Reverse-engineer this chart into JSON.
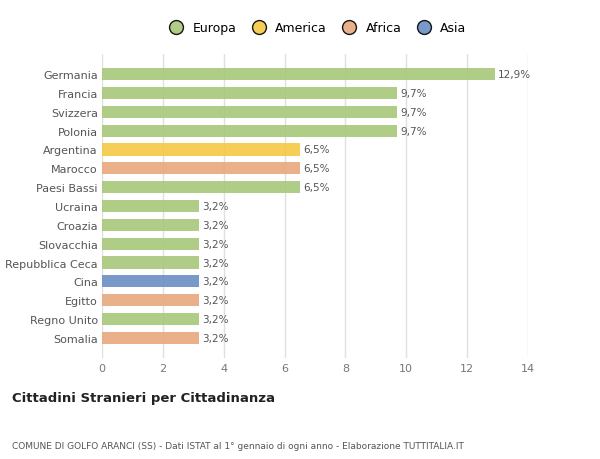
{
  "countries": [
    "Germania",
    "Francia",
    "Svizzera",
    "Polonia",
    "Argentina",
    "Marocco",
    "Paesi Bassi",
    "Ucraina",
    "Croazia",
    "Slovacchia",
    "Repubblica Ceca",
    "Cina",
    "Egitto",
    "Regno Unito",
    "Somalia"
  ],
  "values": [
    12.9,
    9.7,
    9.7,
    9.7,
    6.5,
    6.5,
    6.5,
    3.2,
    3.2,
    3.2,
    3.2,
    3.2,
    3.2,
    3.2,
    3.2
  ],
  "labels": [
    "12,9%",
    "9,7%",
    "9,7%",
    "9,7%",
    "6,5%",
    "6,5%",
    "6,5%",
    "3,2%",
    "3,2%",
    "3,2%",
    "3,2%",
    "3,2%",
    "3,2%",
    "3,2%",
    "3,2%"
  ],
  "colors": [
    "#a8c87a",
    "#a8c87a",
    "#a8c87a",
    "#a8c87a",
    "#f5c842",
    "#e8a87c",
    "#a8c87a",
    "#a8c87a",
    "#a8c87a",
    "#a8c87a",
    "#a8c87a",
    "#6b8fc2",
    "#e8a87c",
    "#a8c87a",
    "#e8a87c"
  ],
  "legend_labels": [
    "Europa",
    "America",
    "Africa",
    "Asia"
  ],
  "legend_colors": [
    "#a8c87a",
    "#f5c842",
    "#e8a87c",
    "#6b8fc2"
  ],
  "title": "Cittadini Stranieri per Cittadinanza",
  "subtitle": "COMUNE DI GOLFO ARANCI (SS) - Dati ISTAT al 1° gennaio di ogni anno - Elaborazione TUTTITALIA.IT",
  "xlim": [
    0,
    14
  ],
  "xticks": [
    0,
    2,
    4,
    6,
    8,
    10,
    12,
    14
  ],
  "bg_color": "#ffffff",
  "grid_color": "#e0e0e0",
  "label_color": "#555555",
  "tick_color": "#777777"
}
